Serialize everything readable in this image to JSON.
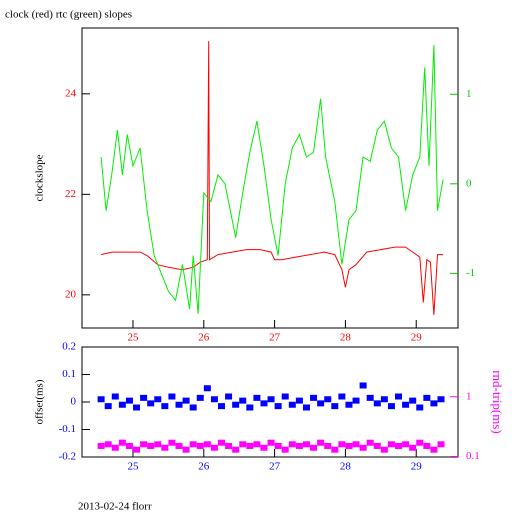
{
  "chart_data": [
    {
      "type": "line",
      "title": "clock (red) rtc (green) slopes",
      "y_label": "clockslope",
      "xlim": [
        24.28,
        29.59
      ],
      "xticks": [
        25,
        26,
        27,
        28,
        29
      ],
      "ylim": [
        19.34,
        25.31
      ],
      "yticks": [
        20,
        22,
        24
      ],
      "y2lim": [
        -1.61,
        1.74
      ],
      "y2ticks": [
        -1,
        0,
        1
      ],
      "series": [
        {
          "color": "#ff0000",
          "x": [
            24.55,
            24.7,
            24.9,
            25.1,
            25.2,
            25.35,
            25.5,
            25.7,
            25.85,
            25.95,
            26.05,
            26.07,
            26.08,
            26.2,
            26.4,
            26.6,
            26.8,
            26.95,
            27.0,
            27.1,
            27.3,
            27.5,
            27.7,
            27.85,
            27.95,
            28.0,
            28.05,
            28.15,
            28.3,
            28.5,
            28.7,
            28.85,
            28.95,
            29.05,
            29.1,
            29.15,
            29.2,
            29.25,
            29.3,
            29.38
          ],
          "values": [
            20.8,
            20.85,
            20.85,
            20.85,
            20.78,
            20.6,
            20.55,
            20.5,
            20.55,
            20.65,
            20.7,
            25.05,
            20.7,
            20.8,
            20.85,
            20.9,
            20.9,
            20.85,
            20.7,
            20.7,
            20.75,
            20.8,
            20.85,
            20.8,
            20.5,
            20.15,
            20.5,
            20.6,
            20.85,
            20.9,
            20.95,
            20.95,
            20.85,
            20.75,
            19.85,
            20.7,
            20.65,
            19.6,
            20.8,
            20.8
          ]
        },
        {
          "color": "#00ee00",
          "axis": "y2",
          "x": [
            24.55,
            24.62,
            24.7,
            24.78,
            24.85,
            24.92,
            25.0,
            25.1,
            25.2,
            25.3,
            25.4,
            25.5,
            25.6,
            25.7,
            25.8,
            25.85,
            25.92,
            26.0,
            26.1,
            26.2,
            26.3,
            26.45,
            26.55,
            26.65,
            26.75,
            26.85,
            26.95,
            27.05,
            27.15,
            27.25,
            27.35,
            27.45,
            27.55,
            27.65,
            27.72,
            27.85,
            27.95,
            28.05,
            28.15,
            28.25,
            28.35,
            28.45,
            28.55,
            28.65,
            28.75,
            28.85,
            28.95,
            29.05,
            29.12,
            29.18,
            29.25,
            29.3,
            29.38
          ],
          "values": [
            0.3,
            -0.3,
            0.1,
            0.6,
            0.1,
            0.55,
            0.2,
            0.4,
            -0.3,
            -0.8,
            -1.0,
            -1.2,
            -1.3,
            -0.9,
            -1.4,
            -0.8,
            -1.45,
            -0.1,
            -0.2,
            0.1,
            0.0,
            -0.6,
            -0.1,
            0.35,
            0.7,
            0.2,
            -0.4,
            -0.8,
            0.0,
            0.4,
            0.55,
            0.3,
            0.35,
            0.95,
            0.3,
            -0.2,
            -0.9,
            -0.4,
            -0.3,
            0.3,
            0.25,
            0.6,
            0.7,
            0.4,
            0.3,
            -0.3,
            0.1,
            0.3,
            1.3,
            0.2,
            1.55,
            -0.3,
            0.05
          ]
        }
      ]
    },
    {
      "type": "scatter",
      "y_label": "offset(ms)",
      "y2_label": "rnd-trip(ms)",
      "footer": "2013-02-24 florr",
      "xlim": [
        24.28,
        29.59
      ],
      "xticks": [
        25,
        26,
        27,
        28,
        29
      ],
      "ylim": [
        -0.2,
        0.2
      ],
      "yticks": [
        -0.2,
        -0.1,
        0,
        0.1,
        0.2
      ],
      "y2lim": [
        0.098,
        6.8
      ],
      "y2ticks": [
        0.1,
        1
      ],
      "y2log": true,
      "series": [
        {
          "color": "#0000ff",
          "x": [
            24.55,
            24.65,
            24.75,
            24.85,
            24.95,
            25.05,
            25.15,
            25.25,
            25.35,
            25.45,
            25.55,
            25.65,
            25.75,
            25.85,
            25.95,
            26.05,
            26.15,
            26.25,
            26.35,
            26.45,
            26.55,
            26.65,
            26.75,
            26.85,
            26.95,
            27.05,
            27.15,
            27.25,
            27.35,
            27.45,
            27.55,
            27.65,
            27.75,
            27.85,
            27.95,
            28.05,
            28.15,
            28.25,
            28.35,
            28.45,
            28.55,
            28.65,
            28.75,
            28.85,
            28.95,
            29.05,
            29.15,
            29.25,
            29.35
          ],
          "values": [
            0.01,
            -0.015,
            0.02,
            -0.01,
            0.005,
            -0.02,
            0.015,
            -0.005,
            0.01,
            -0.015,
            0.02,
            -0.01,
            0.005,
            -0.02,
            0.015,
            0.05,
            0.01,
            -0.015,
            0.02,
            -0.01,
            0.005,
            -0.02,
            0.015,
            -0.005,
            0.01,
            -0.015,
            0.02,
            -0.01,
            0.005,
            -0.02,
            0.015,
            -0.005,
            0.01,
            -0.015,
            0.02,
            -0.01,
            0.005,
            0.06,
            0.015,
            -0.005,
            0.01,
            -0.015,
            0.02,
            -0.01,
            0.005,
            -0.02,
            0.015,
            -0.005,
            0.01
          ]
        },
        {
          "color": "#ff00ff",
          "axis": "y2",
          "x": [
            24.55,
            24.65,
            24.75,
            24.85,
            24.95,
            25.05,
            25.15,
            25.25,
            25.35,
            25.45,
            25.55,
            25.65,
            25.75,
            25.85,
            25.95,
            26.05,
            26.15,
            26.25,
            26.35,
            26.45,
            26.55,
            26.65,
            26.75,
            26.85,
            26.95,
            27.05,
            27.15,
            27.25,
            27.35,
            27.45,
            27.55,
            27.65,
            27.75,
            27.85,
            27.95,
            28.05,
            28.15,
            28.25,
            28.35,
            28.45,
            28.55,
            28.65,
            28.75,
            28.85,
            28.95,
            29.05,
            29.15,
            29.25,
            29.35
          ],
          "values": [
            0.15,
            0.16,
            0.14,
            0.17,
            0.15,
            0.13,
            0.16,
            0.15,
            0.16,
            0.14,
            0.17,
            0.15,
            0.13,
            0.16,
            0.15,
            0.16,
            0.14,
            0.17,
            0.15,
            0.13,
            0.16,
            0.15,
            0.16,
            0.14,
            0.17,
            0.15,
            0.13,
            0.16,
            0.15,
            0.16,
            0.14,
            0.17,
            0.15,
            0.13,
            0.16,
            0.15,
            0.16,
            0.14,
            0.17,
            0.15,
            0.13,
            0.16,
            0.15,
            0.16,
            0.14,
            0.17,
            0.15,
            0.13,
            0.16
          ]
        }
      ]
    }
  ]
}
